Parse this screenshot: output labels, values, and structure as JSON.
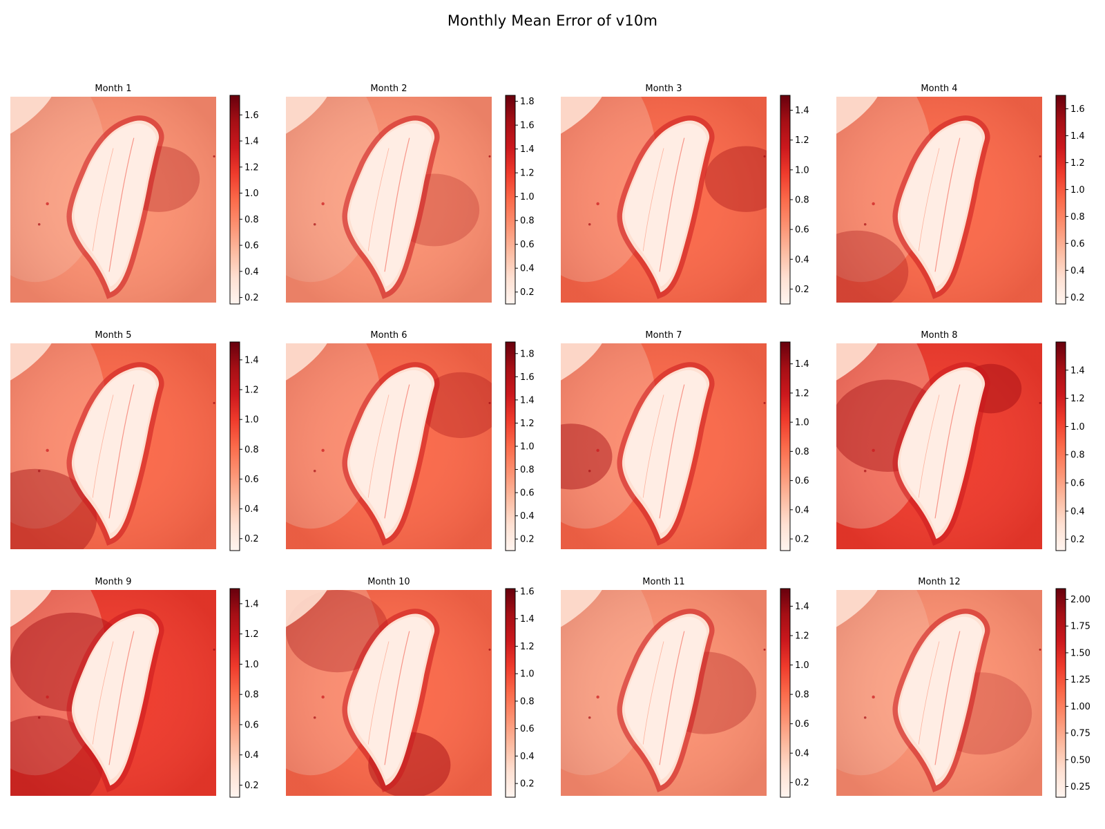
{
  "figure": {
    "title": "Monthly Mean Error of v10m"
  },
  "colormap": {
    "name": "Reds",
    "stops": [
      "#fff5f0",
      "#fee0d2",
      "#fcbba1",
      "#fc9272",
      "#fb6a4a",
      "#ef3b2c",
      "#cb181d",
      "#a50f15",
      "#67000d"
    ]
  },
  "chart_data": [
    {
      "type": "heatmap",
      "title": "Month 1",
      "colorbar": {
        "range": [
          0.15,
          1.75
        ],
        "ticks": [
          "0.2",
          "0.4",
          "0.6",
          "0.8",
          "1.0",
          "1.2",
          "1.4",
          "1.6"
        ]
      }
    },
    {
      "type": "heatmap",
      "title": "Month 2",
      "colorbar": {
        "range": [
          0.1,
          1.85
        ],
        "ticks": [
          "0.2",
          "0.4",
          "0.6",
          "0.8",
          "1.0",
          "1.2",
          "1.4",
          "1.6",
          "1.8"
        ]
      }
    },
    {
      "type": "heatmap",
      "title": "Month 3",
      "colorbar": {
        "range": [
          0.1,
          1.5
        ],
        "ticks": [
          "0.2",
          "0.4",
          "0.6",
          "0.8",
          "1.0",
          "1.2",
          "1.4"
        ]
      }
    },
    {
      "type": "heatmap",
      "title": "Month 4",
      "colorbar": {
        "range": [
          0.15,
          1.7
        ],
        "ticks": [
          "0.2",
          "0.4",
          "0.6",
          "0.8",
          "1.0",
          "1.2",
          "1.4",
          "1.6"
        ]
      }
    },
    {
      "type": "heatmap",
      "title": "Month 5",
      "colorbar": {
        "range": [
          0.12,
          1.52
        ],
        "ticks": [
          "0.2",
          "0.4",
          "0.6",
          "0.8",
          "1.0",
          "1.2",
          "1.4"
        ]
      }
    },
    {
      "type": "heatmap",
      "title": "Month 6",
      "colorbar": {
        "range": [
          0.1,
          1.9
        ],
        "ticks": [
          "0.2",
          "0.4",
          "0.6",
          "0.8",
          "1.0",
          "1.2",
          "1.4",
          "1.6",
          "1.8"
        ]
      }
    },
    {
      "type": "heatmap",
      "title": "Month 7",
      "colorbar": {
        "range": [
          0.12,
          1.55
        ],
        "ticks": [
          "0.2",
          "0.4",
          "0.6",
          "0.8",
          "1.0",
          "1.2",
          "1.4"
        ]
      }
    },
    {
      "type": "heatmap",
      "title": "Month 8",
      "colorbar": {
        "range": [
          0.12,
          1.6
        ],
        "ticks": [
          "0.2",
          "0.4",
          "0.6",
          "0.8",
          "1.0",
          "1.2",
          "1.4"
        ]
      }
    },
    {
      "type": "heatmap",
      "title": "Month 9",
      "colorbar": {
        "range": [
          0.12,
          1.5
        ],
        "ticks": [
          "0.2",
          "0.4",
          "0.6",
          "0.8",
          "1.0",
          "1.2",
          "1.4"
        ]
      }
    },
    {
      "type": "heatmap",
      "title": "Month 10",
      "colorbar": {
        "range": [
          0.1,
          1.62
        ],
        "ticks": [
          "0.2",
          "0.4",
          "0.6",
          "0.8",
          "1.0",
          "1.2",
          "1.4",
          "1.6"
        ]
      }
    },
    {
      "type": "heatmap",
      "title": "Month 11",
      "colorbar": {
        "range": [
          0.1,
          1.52
        ],
        "ticks": [
          "0.2",
          "0.4",
          "0.6",
          "0.8",
          "1.0",
          "1.2",
          "1.4"
        ]
      }
    },
    {
      "type": "heatmap",
      "title": "Month 12",
      "colorbar": {
        "range": [
          0.15,
          2.1
        ],
        "ticks": [
          "0.25",
          "0.50",
          "0.75",
          "1.00",
          "1.25",
          "1.50",
          "1.75",
          "2.00"
        ]
      }
    }
  ]
}
